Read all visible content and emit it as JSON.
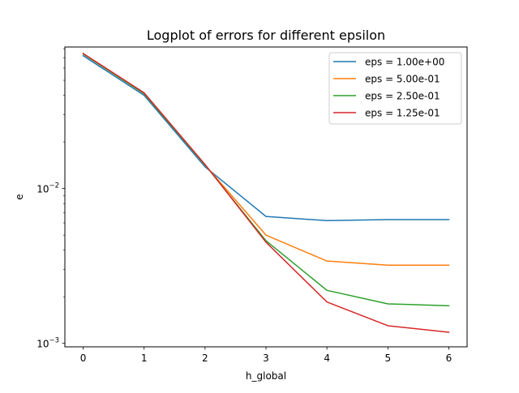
{
  "chart_data": {
    "type": "line",
    "title": "Logplot of errors for different epsilon",
    "xlabel": "h_global",
    "ylabel": "e",
    "y_scale": "log",
    "xlim": [
      -0.3,
      6.3
    ],
    "ylim": [
      0.00095,
      0.082
    ],
    "x": [
      0,
      1,
      2,
      3,
      4,
      5,
      6
    ],
    "x_ticks": [
      0,
      1,
      2,
      3,
      4,
      5,
      6
    ],
    "x_tick_labels": [
      "0",
      "1",
      "2",
      "3",
      "4",
      "5",
      "6"
    ],
    "y_ticks": [
      0.001,
      0.01
    ],
    "y_tick_labels": [
      {
        "base": "10",
        "exp": "−3"
      },
      {
        "base": "10",
        "exp": "−2"
      }
    ],
    "grid": false,
    "legend_position": "top-right",
    "series": [
      {
        "name": "eps = 1.00e+00",
        "color": "#1f77b4",
        "values": [
          0.072,
          0.04,
          0.0138,
          0.0066,
          0.0062,
          0.0063,
          0.0063
        ]
      },
      {
        "name": "eps = 5.00e-01",
        "color": "#ff7f0e",
        "values": [
          0.074,
          0.041,
          0.0142,
          0.005,
          0.0034,
          0.0032,
          0.0032
        ]
      },
      {
        "name": "eps = 2.50e-01",
        "color": "#2ca02c",
        "values": [
          0.074,
          0.041,
          0.0142,
          0.0046,
          0.0022,
          0.0018,
          0.00175
        ]
      },
      {
        "name": "eps = 1.25e-01",
        "color": "#d62728",
        "values": [
          0.0745,
          0.0415,
          0.0143,
          0.0045,
          0.00185,
          0.0013,
          0.00118
        ]
      }
    ]
  }
}
